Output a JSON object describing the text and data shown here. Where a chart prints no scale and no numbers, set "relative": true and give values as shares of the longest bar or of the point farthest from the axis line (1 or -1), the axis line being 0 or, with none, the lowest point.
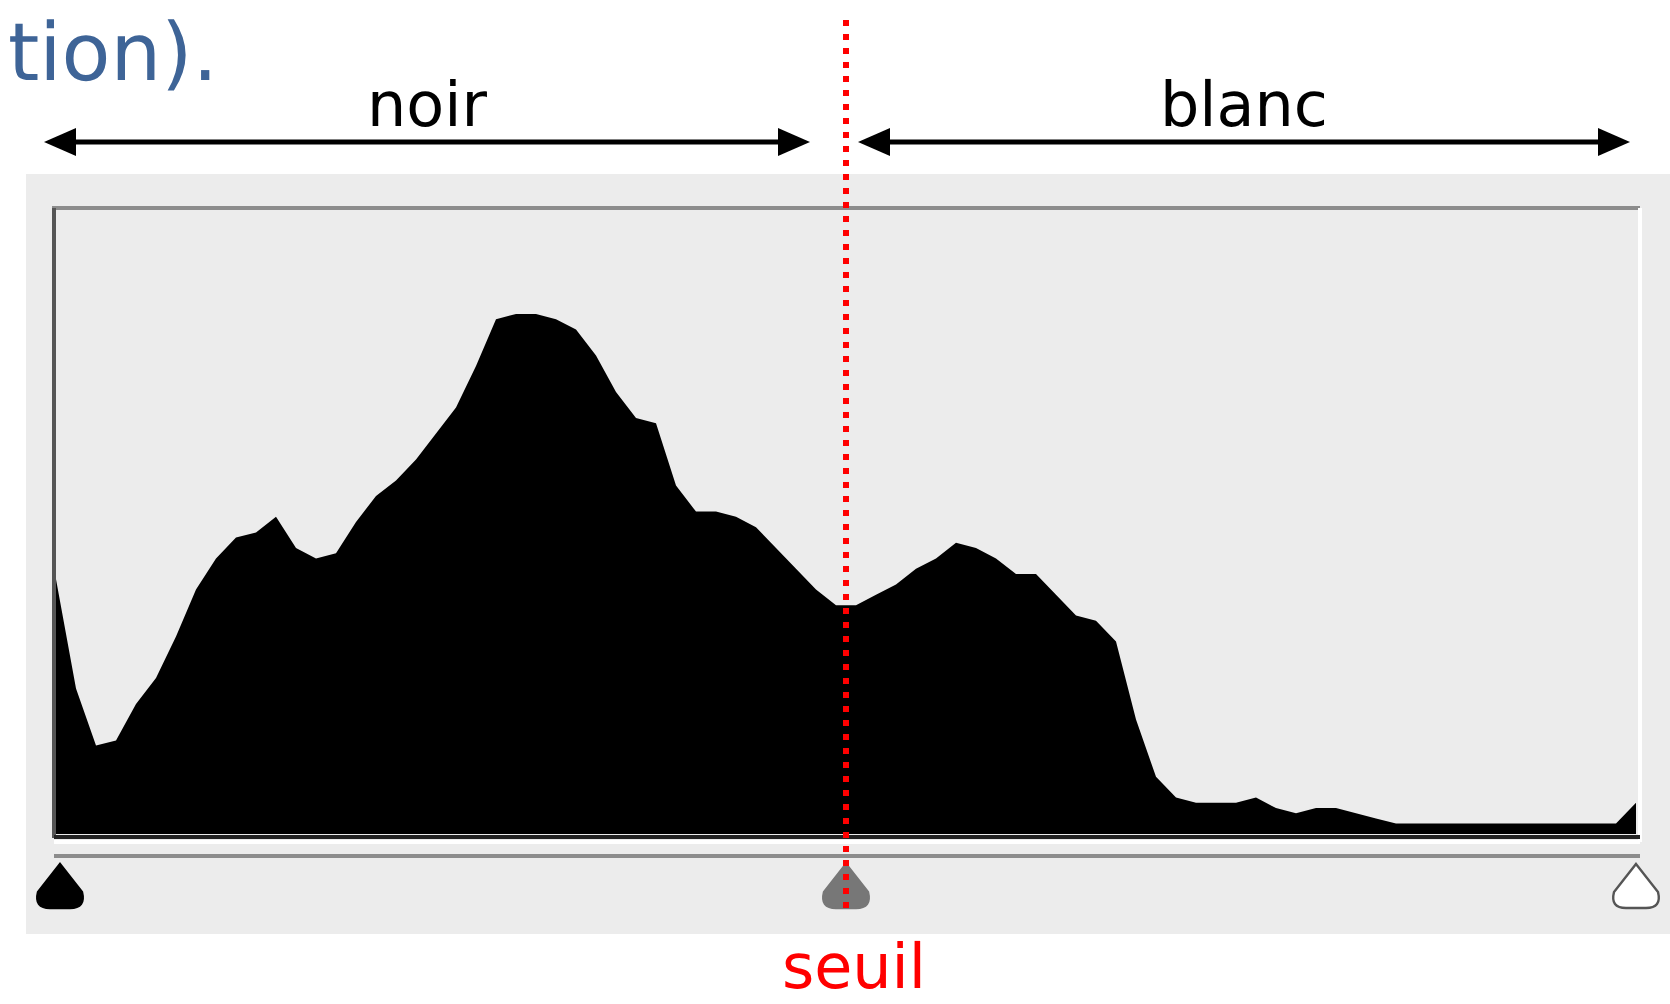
{
  "chart_data": {
    "type": "area",
    "title": "tion).",
    "annotations": [
      "noir",
      "blanc",
      "seuil"
    ],
    "relative": true,
    "color": "#000000",
    "categories": [
      null,
      null,
      null,
      null,
      null,
      null,
      null,
      null,
      null,
      null,
      null,
      null,
      null,
      null,
      null,
      null,
      null,
      null,
      null,
      null,
      null,
      null,
      null,
      null,
      null,
      null,
      null,
      null,
      null,
      null,
      null,
      null,
      null,
      null,
      null,
      null,
      null,
      null,
      null,
      null,
      null,
      null,
      null,
      null,
      null,
      null,
      null,
      null,
      null,
      null,
      null,
      null,
      null,
      null,
      null,
      null,
      null,
      null,
      null,
      null,
      null,
      null,
      null,
      null,
      null,
      null,
      null,
      null,
      null,
      null,
      null,
      null,
      null,
      null,
      null,
      null,
      null,
      null,
      null,
      null
    ],
    "values": [
      0.49,
      0.28,
      0.17,
      0.18,
      0.25,
      0.3,
      0.38,
      0.47,
      0.53,
      0.57,
      0.58,
      0.61,
      0.55,
      0.53,
      0.54,
      0.6,
      0.65,
      0.68,
      0.72,
      0.77,
      0.82,
      0.9,
      0.99,
      1.0,
      1.0,
      0.99,
      0.97,
      0.92,
      0.85,
      0.8,
      0.79,
      0.67,
      0.62,
      0.62,
      0.61,
      0.59,
      0.55,
      0.51,
      0.47,
      0.44,
      0.44,
      0.46,
      0.48,
      0.51,
      0.53,
      0.56,
      0.55,
      0.53,
      0.5,
      0.5,
      0.46,
      0.42,
      0.41,
      0.37,
      0.22,
      0.11,
      0.07,
      0.06,
      0.06,
      0.06,
      0.07,
      0.05,
      0.04,
      0.05,
      0.05,
      0.04,
      0.03,
      0.02,
      0.02,
      0.02,
      0.02,
      0.02,
      0.02,
      0.02,
      0.02,
      0.02,
      0.02,
      0.02,
      0.02,
      0.06
    ]
  }
}
